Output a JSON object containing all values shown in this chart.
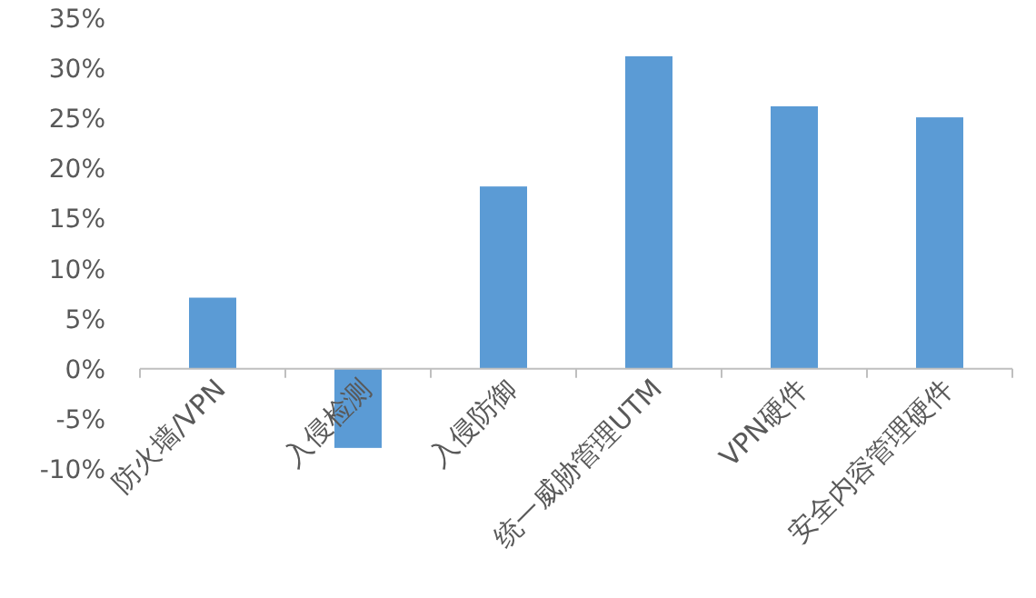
{
  "chart_data": {
    "type": "bar",
    "categories": [
      "防火墙/VPN",
      "入侵检测",
      "入侵防御",
      "统一威胁管理UTM",
      "VPN硬件",
      "安全内容管理硬件"
    ],
    "values": [
      7.1,
      -7.9,
      18.2,
      31.2,
      26.2,
      25.1
    ],
    "color": "#5b9bd5",
    "ylim": [
      -10,
      35
    ],
    "yticks": [
      {
        "value": -10,
        "label": "-10%"
      },
      {
        "value": -5,
        "label": "-5%"
      },
      {
        "value": 0,
        "label": "0%"
      },
      {
        "value": 5,
        "label": "5%"
      },
      {
        "value": 10,
        "label": "10%"
      },
      {
        "value": 15,
        "label": "15%"
      },
      {
        "value": 20,
        "label": "20%"
      },
      {
        "value": 25,
        "label": "25%"
      },
      {
        "value": 30,
        "label": "30%"
      },
      {
        "value": 35,
        "label": "35%"
      }
    ],
    "grid": false
  }
}
